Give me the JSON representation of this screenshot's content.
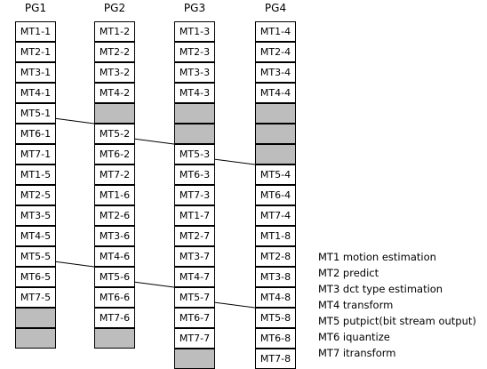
{
  "columns": [
    {
      "title": "PG1",
      "cells": [
        "MT1-1",
        "MT2-1",
        "MT3-1",
        "MT4-1",
        "MT5-1",
        "MT6-1",
        "MT7-1",
        "MT1-5",
        "MT2-5",
        "MT3-5",
        "MT4-5",
        "MT5-5",
        "MT6-5",
        "MT7-5",
        "",
        ""
      ]
    },
    {
      "title": "PG2",
      "cells": [
        "MT1-2",
        "MT2-2",
        "MT3-2",
        "MT4-2",
        "",
        "MT5-2",
        "MT6-2",
        "MT7-2",
        "MT1-6",
        "MT2-6",
        "MT3-6",
        "MT4-6",
        "MT5-6",
        "MT6-6",
        "MT7-6",
        ""
      ]
    },
    {
      "title": "PG3",
      "cells": [
        "MT1-3",
        "MT2-3",
        "MT3-3",
        "MT4-3",
        "",
        "",
        "MT5-3",
        "MT6-3",
        "MT7-3",
        "MT1-7",
        "MT2-7",
        "MT3-7",
        "MT4-7",
        "MT5-7",
        "MT6-7",
        "MT7-7",
        ""
      ]
    },
    {
      "title": "PG4",
      "cells": [
        "MT1-4",
        "MT2-4",
        "MT3-4",
        "MT4-4",
        "",
        "",
        "",
        "MT5-4",
        "MT6-4",
        "MT7-4",
        "MT1-8",
        "MT2-8",
        "MT3-8",
        "MT4-8",
        "MT5-8",
        "MT6-8",
        "MT7-8"
      ]
    }
  ],
  "legend": [
    "MT1 motion estimation",
    "MT2 predict",
    "MT3 dct type estimation",
    "MT4 transform",
    "MT5 putpict(bit stream output)",
    "MT6 iquantize",
    "MT7 itransform"
  ],
  "arrows": [
    {
      "from": "MT5-1",
      "to": "MT5-2"
    },
    {
      "from": "MT5-2",
      "to": "MT5-3"
    },
    {
      "from": "MT5-3",
      "to": "MT5-4"
    },
    {
      "from": "MT5-5",
      "to": "MT5-6"
    },
    {
      "from": "MT5-6",
      "to": "MT5-7"
    },
    {
      "from": "MT5-7",
      "to": "MT5-8"
    }
  ]
}
